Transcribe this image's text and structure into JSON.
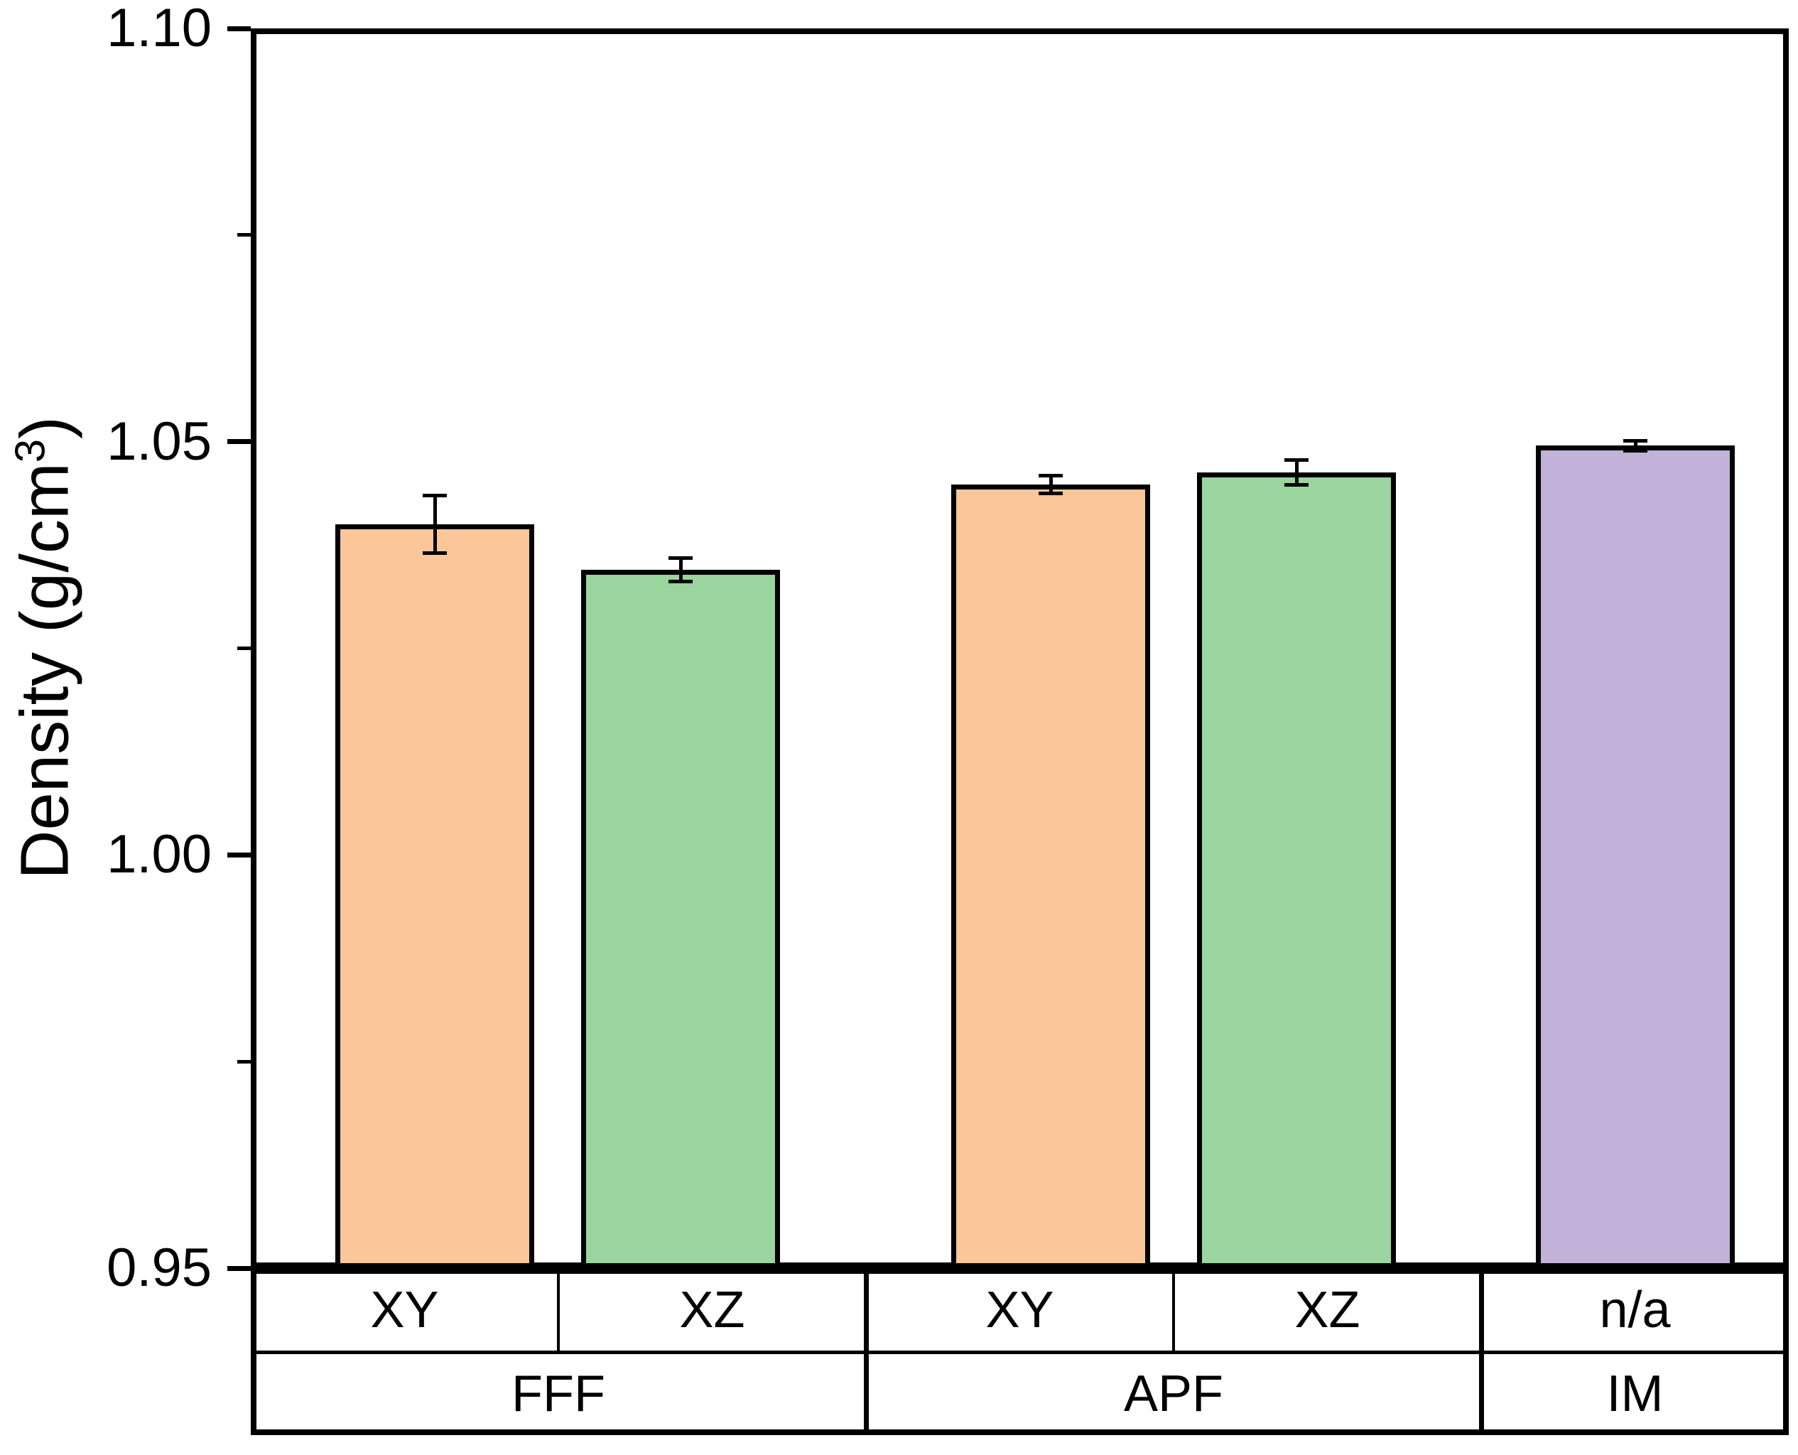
{
  "figure": {
    "background": "#FFFFFF"
  },
  "chart_data": {
    "type": "bar",
    "title": "",
    "xlabel": "",
    "ylabel": {
      "prefix": "Density (g/cm",
      "superscript": "3",
      "suffix": ")",
      "full": "Density (g/cm³)"
    },
    "ylim": [
      0.95,
      1.1
    ],
    "yticks": [
      {
        "value": 0.95,
        "label": "0.95"
      },
      {
        "value": 1.0,
        "label": "1.00"
      },
      {
        "value": 1.05,
        "label": "1.05"
      },
      {
        "value": 1.1,
        "label": "1.10"
      }
    ],
    "minor_yticks": [
      0.975,
      1.025,
      1.075
    ],
    "grid": false,
    "legend": "none",
    "error_bars": true,
    "categories_row_top": [
      "XY",
      "XZ",
      "XY",
      "XZ",
      "n/a"
    ],
    "categories_row_bottom": [
      "FFF",
      "APF",
      "IM"
    ],
    "groups": [
      {
        "process": "FFF",
        "bars": [
          {
            "orientation": "XY",
            "value": 1.04,
            "error": 0.0035,
            "color": "#FBC69A",
            "color_name": "orange"
          },
          {
            "orientation": "XZ",
            "value": 1.0345,
            "error": 0.0014,
            "color": "#9AD59D",
            "color_name": "green"
          }
        ]
      },
      {
        "process": "APF",
        "bars": [
          {
            "orientation": "XY",
            "value": 1.0448,
            "error": 0.0011,
            "color": "#FBC69A",
            "color_name": "orange"
          },
          {
            "orientation": "XZ",
            "value": 1.0463,
            "error": 0.0015,
            "color": "#9AD59D",
            "color_name": "green"
          }
        ]
      },
      {
        "process": "IM",
        "bars": [
          {
            "orientation": "n/a",
            "value": 1.0495,
            "error": 0.0006,
            "color": "#C2B1D8",
            "color_name": "purple"
          }
        ]
      }
    ],
    "colors": {
      "axis": "#000000",
      "error_bar": "#000000",
      "background": "#FFFFFF"
    }
  }
}
